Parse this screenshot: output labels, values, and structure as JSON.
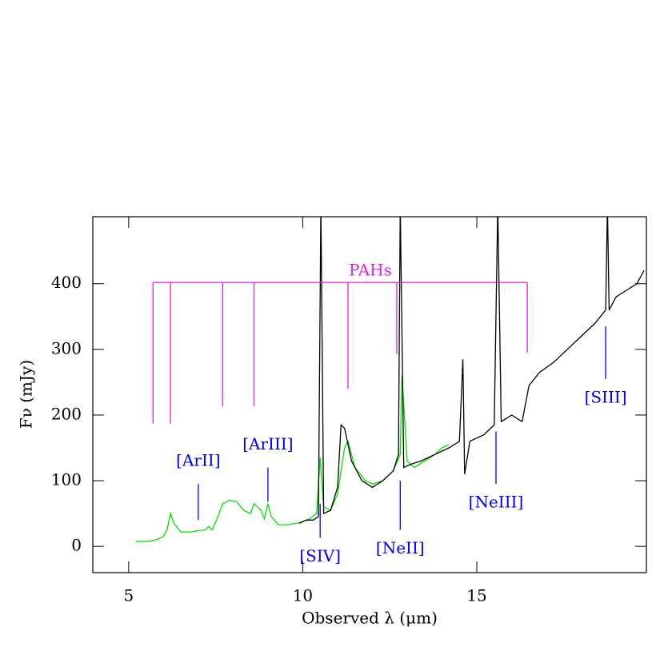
{
  "chart_data": {
    "type": "line",
    "xlabel": "Observed λ (μm)",
    "ylabel": "Fν (mJy)",
    "xlim": [
      3.97,
      19.87
    ],
    "ylim": [
      -40,
      502
    ],
    "xticks": [
      5,
      10,
      15
    ],
    "yticks": [
      0,
      100,
      200,
      300,
      400
    ],
    "series": [
      {
        "color": "#00e000",
        "x": [
          5.2,
          5.4,
          5.6,
          5.8,
          6.0,
          6.1,
          6.2,
          6.3,
          6.5,
          6.8,
          7.0,
          7.2,
          7.3,
          7.4,
          7.6,
          7.7,
          7.9,
          8.1,
          8.3,
          8.5,
          8.6,
          8.8,
          8.9,
          9.0,
          9.1,
          9.3,
          9.6,
          9.9,
          10.2,
          10.4,
          10.5,
          10.6,
          10.8,
          11.0,
          11.2,
          11.3,
          11.5,
          11.8,
          12.0,
          12.3,
          12.6,
          12.8,
          12.85,
          13.0,
          13.2,
          13.5,
          13.8,
          14.0,
          14.2
        ],
        "values": [
          8,
          7,
          8,
          10,
          15,
          25,
          50,
          35,
          22,
          22,
          24,
          25,
          30,
          25,
          50,
          65,
          70,
          68,
          55,
          50,
          65,
          55,
          42,
          65,
          45,
          33,
          33,
          36,
          42,
          50,
          135,
          60,
          55,
          80,
          150,
          160,
          120,
          100,
          95,
          100,
          115,
          140,
          260,
          130,
          120,
          130,
          140,
          150,
          155
        ]
      },
      {
        "color": "#000000",
        "x": [
          9.9,
          10.1,
          10.3,
          10.45,
          10.52,
          10.6,
          10.8,
          11.0,
          11.1,
          11.2,
          11.4,
          11.7,
          12.0,
          12.3,
          12.6,
          12.75,
          12.8,
          12.9,
          13.1,
          13.4,
          13.8,
          14.2,
          14.5,
          14.6,
          14.65,
          14.8,
          15.2,
          15.5,
          15.6,
          15.7,
          16.0,
          16.3,
          16.5,
          16.8,
          17.2,
          17.6,
          18.0,
          18.4,
          18.7,
          18.75,
          18.8,
          19.0,
          19.3,
          19.6,
          19.8
        ],
        "values": [
          35,
          40,
          40,
          45,
          520,
          50,
          55,
          90,
          185,
          180,
          130,
          100,
          90,
          100,
          115,
          140,
          520,
          120,
          125,
          130,
          140,
          150,
          160,
          285,
          110,
          160,
          170,
          185,
          520,
          190,
          200,
          190,
          245,
          265,
          280,
          300,
          320,
          340,
          360,
          520,
          360,
          380,
          390,
          400,
          420
        ]
      }
    ],
    "pah": {
      "label": "PAHs",
      "level": 402,
      "label_x": 11.3,
      "x": [
        5.7,
        6.2,
        7.7,
        8.6,
        11.3,
        12.7,
        16.45
      ],
      "values": [
        187,
        187,
        213,
        213,
        240,
        293,
        295
      ]
    },
    "lines": [
      {
        "label": "[ArII]",
        "x": 7.0,
        "y_low": 40,
        "y_high": 95
      },
      {
        "label": "[ArIII]",
        "x": 9.0,
        "y_low": 68,
        "y_high": 120
      },
      {
        "label": "[SIV]",
        "x": 10.5,
        "y_low": 13,
        "y_high": 65
      },
      {
        "label": "[NeII]",
        "x": 12.8,
        "y_low": 25,
        "y_high": 100
      },
      {
        "label": "[NeIII]",
        "x": 15.55,
        "y_low": 95,
        "y_high": 175
      },
      {
        "label": "[SIII]",
        "x": 18.7,
        "y_low": 255,
        "y_high": 335
      }
    ]
  }
}
